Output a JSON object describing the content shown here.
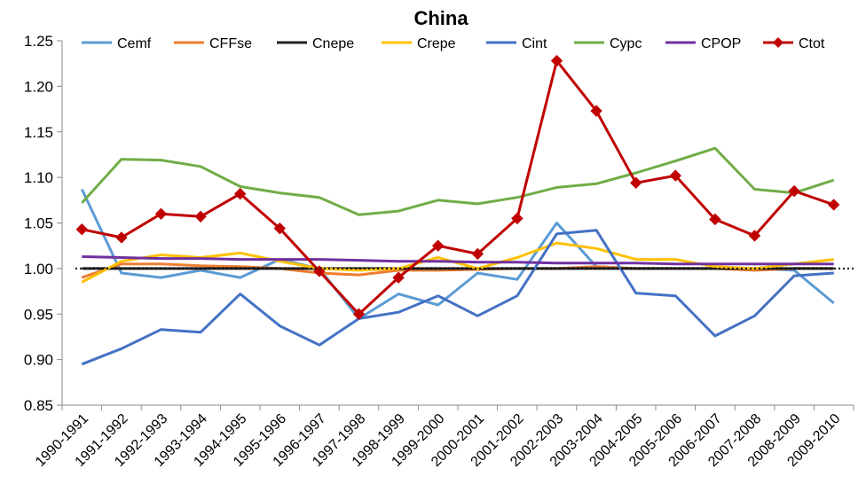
{
  "chart_data": {
    "type": "line",
    "title": "China",
    "xlabel": "",
    "ylabel": "",
    "ylim": [
      0.85,
      1.25
    ],
    "yticks": [
      0.85,
      0.9,
      0.95,
      1.0,
      1.05,
      1.1,
      1.15,
      1.2,
      1.25
    ],
    "ytick_labels": [
      "0.85",
      "0.90",
      "0.95",
      "1.00",
      "1.05",
      "1.10",
      "1.15",
      "1.20",
      "1.25"
    ],
    "grid": false,
    "legend": "top",
    "reference_line": 1.0,
    "categories": [
      "1990-1991",
      "1991-1992",
      "1992-1993",
      "1993-1994",
      "1994-1995",
      "1995-1996",
      "1996-1997",
      "1997-1998",
      "1998-1999",
      "1999-2000",
      "2000-2001",
      "2001-2002",
      "2002-2003",
      "2003-2004",
      "2004-2005",
      "2005-2006",
      "2006-2007",
      "2007-2008",
      "2008-2009",
      "2009-2010"
    ],
    "series": [
      {
        "name": "Cemf",
        "color": "#5b9bd5",
        "marker": "none",
        "values": [
          1.087,
          0.995,
          0.99,
          0.998,
          0.99,
          1.01,
          1.0,
          0.945,
          0.972,
          0.96,
          0.995,
          0.988,
          1.05,
          1.002,
          1.0,
          1.0,
          1.0,
          1.0,
          0.998,
          0.962
        ]
      },
      {
        "name": "CFFse",
        "color": "#ed7d31",
        "marker": "none",
        "values": [
          0.99,
          1.005,
          1.005,
          1.003,
          1.002,
          1.0,
          0.995,
          0.993,
          0.998,
          0.998,
          0.999,
          1.0,
          1.0,
          1.002,
          1.0,
          1.0,
          1.0,
          0.998,
          1.0,
          1.0
        ]
      },
      {
        "name": "Cnepe",
        "color": "#222222",
        "marker": "none",
        "values": [
          1.0,
          1.0,
          1.0,
          1.0,
          1.0,
          1.0,
          1.0,
          1.0,
          1.0,
          1.0,
          1.0,
          1.0,
          1.0,
          1.0,
          1.0,
          1.0,
          1.0,
          1.0,
          1.0,
          1.0
        ]
      },
      {
        "name": "Crepe",
        "color": "#ffc000",
        "marker": "none",
        "values": [
          0.985,
          1.008,
          1.015,
          1.012,
          1.017,
          1.008,
          1.0,
          0.998,
          1.0,
          1.012,
          1.0,
          1.012,
          1.028,
          1.022,
          1.01,
          1.01,
          1.002,
          1.0,
          1.005,
          1.01
        ]
      },
      {
        "name": "Cint",
        "color": "#4472c4",
        "marker": "none",
        "values": [
          0.895,
          0.912,
          0.933,
          0.93,
          0.972,
          0.937,
          0.916,
          0.945,
          0.952,
          0.97,
          0.948,
          0.97,
          1.038,
          1.042,
          0.973,
          0.97,
          0.926,
          0.948,
          0.992,
          0.995
        ]
      },
      {
        "name": "Cypc",
        "color": "#70ad47",
        "marker": "none",
        "values": [
          1.072,
          1.12,
          1.119,
          1.112,
          1.09,
          1.083,
          1.078,
          1.059,
          1.063,
          1.075,
          1.071,
          1.078,
          1.089,
          1.093,
          1.105,
          1.118,
          1.132,
          1.087,
          1.083,
          1.097
        ]
      },
      {
        "name": "CPOP",
        "color": "#7030a0",
        "marker": "none",
        "values": [
          1.013,
          1.012,
          1.011,
          1.011,
          1.01,
          1.01,
          1.01,
          1.009,
          1.008,
          1.008,
          1.007,
          1.007,
          1.006,
          1.006,
          1.006,
          1.005,
          1.005,
          1.005,
          1.005,
          1.005
        ]
      },
      {
        "name": "Ctot",
        "color": "#c00000",
        "marker": "diamond",
        "values": [
          1.043,
          1.034,
          1.06,
          1.057,
          1.082,
          1.044,
          0.997,
          0.95,
          0.99,
          1.025,
          1.016,
          1.055,
          1.228,
          1.173,
          1.094,
          1.102,
          1.054,
          1.036,
          1.085,
          1.07
        ]
      }
    ]
  }
}
